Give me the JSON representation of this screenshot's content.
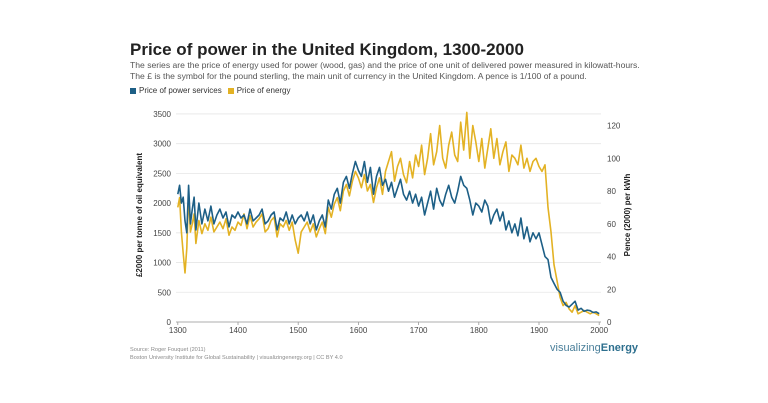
{
  "header": {
    "title": "Price of power in the United Kingdom, 1300-2000",
    "subtitle": "The series are the price of energy used for power (wood, gas) and the price of one unit of delivered power measured in kilowatt-hours. The £ is the symbol for the pound sterling, the main unit of currency in the United Kingdom. A pence is 1/100 of a pound."
  },
  "footer": {
    "source_line1": "Source: Roger Fouquet (2011)",
    "source_line2": "Boston University Institute for Global Sustainability | visualizingenergy.org | CC BY 4.0",
    "brand_light": "visualizing",
    "brand_bold": "Energy"
  },
  "colors": {
    "services": "#1d5f86",
    "energy": "#e3b224",
    "grid": "#e6e6e6"
  },
  "chart_data": {
    "type": "line",
    "xlabel": "",
    "xlim": [
      1297,
      2003
    ],
    "xticks": [
      1300,
      1400,
      1500,
      1600,
      1700,
      1800,
      1900,
      2000
    ],
    "left_axis": {
      "label": "£2000 per tonne of oil equivalent",
      "ylim": [
        0,
        3600
      ],
      "ticks": [
        0,
        500,
        1000,
        1500,
        2000,
        2500,
        3000,
        3500
      ]
    },
    "right_axis": {
      "label": "Pence (2000) per kWh",
      "ylim": [
        0,
        130.7
      ],
      "ticks": [
        0,
        20,
        40,
        60,
        80,
        100,
        120
      ]
    },
    "series": [
      {
        "name": "Price of power services",
        "axis": "left",
        "x": [
          1300,
          1303,
          1306,
          1309,
          1312,
          1315,
          1318,
          1321,
          1324,
          1327,
          1330,
          1335,
          1340,
          1345,
          1350,
          1355,
          1360,
          1365,
          1370,
          1375,
          1380,
          1385,
          1390,
          1395,
          1400,
          1405,
          1410,
          1415,
          1420,
          1425,
          1430,
          1435,
          1440,
          1445,
          1450,
          1455,
          1460,
          1465,
          1470,
          1475,
          1480,
          1485,
          1490,
          1495,
          1500,
          1505,
          1510,
          1515,
          1520,
          1525,
          1530,
          1535,
          1540,
          1545,
          1550,
          1555,
          1560,
          1565,
          1570,
          1575,
          1580,
          1585,
          1590,
          1595,
          1600,
          1605,
          1610,
          1615,
          1620,
          1625,
          1630,
          1635,
          1640,
          1645,
          1650,
          1655,
          1660,
          1665,
          1670,
          1675,
          1680,
          1685,
          1690,
          1695,
          1700,
          1705,
          1710,
          1715,
          1720,
          1725,
          1730,
          1735,
          1740,
          1745,
          1750,
          1755,
          1760,
          1765,
          1770,
          1775,
          1780,
          1785,
          1790,
          1795,
          1800,
          1805,
          1810,
          1815,
          1820,
          1825,
          1830,
          1835,
          1840,
          1845,
          1850,
          1855,
          1860,
          1865,
          1870,
          1875,
          1880,
          1885,
          1890,
          1895,
          1900,
          1905,
          1910,
          1915,
          1920,
          1925,
          1930,
          1935,
          1940,
          1945,
          1950,
          1955,
          1960,
          1965,
          1970,
          1975,
          1980,
          1985,
          1990,
          1995,
          2000
        ],
        "values": [
          2150,
          2300,
          2000,
          2100,
          1700,
          1500,
          2300,
          1650,
          1900,
          2100,
          1550,
          2000,
          1650,
          1900,
          1700,
          1950,
          1650,
          1800,
          1900,
          1750,
          1850,
          1600,
          1800,
          1750,
          1850,
          1750,
          1800,
          1650,
          1900,
          1700,
          1750,
          1800,
          1900,
          1650,
          1700,
          1800,
          1850,
          1550,
          1750,
          1700,
          1850,
          1650,
          1800,
          1650,
          1750,
          1800,
          1700,
          1850,
          1650,
          1800,
          1550,
          1700,
          1800,
          1600,
          2050,
          1900,
          2150,
          2250,
          2000,
          2350,
          2450,
          2250,
          2500,
          2700,
          2550,
          2450,
          2700,
          2350,
          2600,
          2150,
          2450,
          2600,
          2300,
          2400,
          2200,
          2350,
          2100,
          2250,
          2400,
          2150,
          2050,
          2200,
          2000,
          2150,
          1950,
          2100,
          1800,
          2000,
          2200,
          1900,
          2250,
          2050,
          1950,
          2150,
          2300,
          2100,
          2000,
          2200,
          2450,
          2300,
          2250,
          2050,
          1800,
          2000,
          1950,
          1850,
          2050,
          1950,
          1650,
          1800,
          1900,
          1700,
          1850,
          1550,
          1700,
          1500,
          1650,
          1450,
          1750,
          1400,
          1600,
          1350,
          1500,
          1400,
          1500,
          1300,
          1100,
          1050,
          750,
          650,
          550,
          500,
          350,
          280,
          250,
          300,
          350,
          200,
          230,
          180,
          200,
          190,
          160,
          170,
          140
        ],
        "color": "#1d5f86"
      },
      {
        "name": "Price of energy",
        "axis": "right",
        "x": [
          1300,
          1303,
          1306,
          1309,
          1312,
          1315,
          1318,
          1321,
          1324,
          1327,
          1330,
          1335,
          1340,
          1345,
          1350,
          1355,
          1360,
          1365,
          1370,
          1375,
          1380,
          1385,
          1390,
          1395,
          1400,
          1405,
          1410,
          1415,
          1420,
          1425,
          1430,
          1435,
          1440,
          1445,
          1450,
          1455,
          1460,
          1465,
          1470,
          1475,
          1480,
          1485,
          1490,
          1495,
          1500,
          1505,
          1510,
          1515,
          1520,
          1525,
          1530,
          1535,
          1540,
          1545,
          1550,
          1555,
          1560,
          1565,
          1570,
          1575,
          1580,
          1585,
          1590,
          1595,
          1600,
          1605,
          1610,
          1615,
          1620,
          1625,
          1630,
          1635,
          1640,
          1645,
          1650,
          1655,
          1660,
          1665,
          1670,
          1675,
          1680,
          1685,
          1690,
          1695,
          1700,
          1705,
          1710,
          1715,
          1720,
          1725,
          1730,
          1735,
          1740,
          1745,
          1750,
          1755,
          1760,
          1765,
          1770,
          1775,
          1780,
          1785,
          1790,
          1795,
          1800,
          1805,
          1810,
          1815,
          1820,
          1825,
          1830,
          1835,
          1840,
          1845,
          1850,
          1855,
          1860,
          1865,
          1870,
          1875,
          1880,
          1885,
          1890,
          1895,
          1900,
          1905,
          1910,
          1915,
          1920,
          1925,
          1930,
          1935,
          1940,
          1945,
          1950,
          1955,
          1960,
          1965,
          1970,
          1975,
          1980,
          1985,
          1990,
          1995,
          2000
        ],
        "values": [
          70,
          76,
          55,
          42,
          30,
          45,
          78,
          55,
          60,
          66,
          48,
          62,
          54,
          60,
          56,
          64,
          55,
          58,
          61,
          57,
          63,
          53,
          58,
          56,
          61,
          59,
          66,
          57,
          65,
          58,
          61,
          63,
          66,
          55,
          57,
          62,
          64,
          52,
          60,
          58,
          62,
          56,
          61,
          50,
          42,
          55,
          58,
          61,
          55,
          60,
          52,
          57,
          61,
          54,
          70,
          64,
          72,
          76,
          68,
          80,
          84,
          77,
          86,
          92,
          88,
          82,
          90,
          80,
          84,
          73,
          82,
          88,
          78,
          92,
          98,
          104,
          86,
          95,
          100,
          90,
          85,
          98,
          88,
          102,
          95,
          108,
          90,
          100,
          115,
          96,
          104,
          120,
          100,
          94,
          108,
          116,
          102,
          98,
          122,
          105,
          128,
          100,
          120,
          110,
          98,
          112,
          94,
          106,
          118,
          100,
          112,
          96,
          104,
          110,
          92,
          102,
          100,
          96,
          108,
          94,
          100,
          92,
          98,
          100,
          95,
          92,
          96,
          70,
          55,
          35,
          25,
          15,
          10,
          12,
          8,
          6,
          10,
          5,
          6,
          7,
          6,
          5,
          6,
          5,
          4
        ],
        "color": "#e3b224"
      }
    ]
  }
}
